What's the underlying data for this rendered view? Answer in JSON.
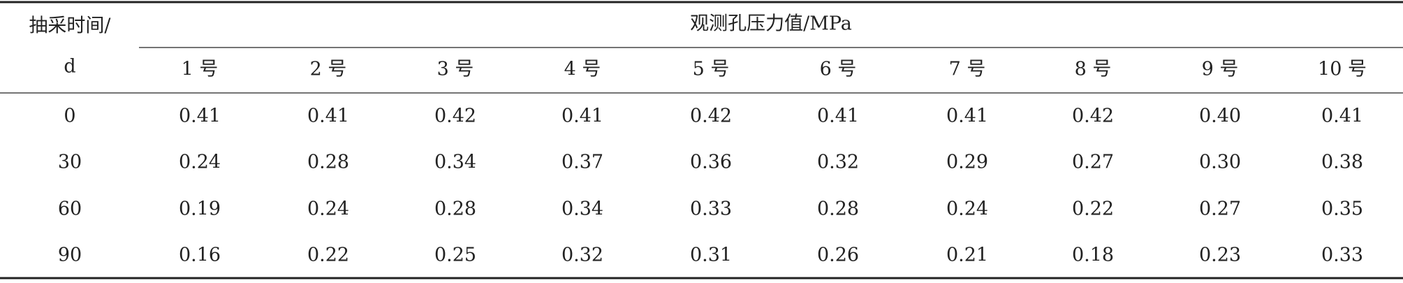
{
  "table": {
    "row_header": [
      "抽采时间/",
      "d"
    ],
    "group_header": "观测孔压力值/MPa",
    "columns": [
      "1 号",
      "2 号",
      "3 号",
      "4 号",
      "5 号",
      "6 号",
      "7 号",
      "8 号",
      "9 号",
      "10 号"
    ],
    "rows": [
      [
        "0",
        "0.41",
        "0.41",
        "0.42",
        "0.41",
        "0.42",
        "0.41",
        "0.41",
        "0.42",
        "0.40",
        "0.41"
      ],
      [
        "30",
        "0.24",
        "0.28",
        "0.34",
        "0.37",
        "0.36",
        "0.32",
        "0.29",
        "0.27",
        "0.30",
        "0.38"
      ],
      [
        "60",
        "0.19",
        "0.24",
        "0.28",
        "0.34",
        "0.33",
        "0.28",
        "0.24",
        "0.22",
        "0.27",
        "0.35"
      ],
      [
        "90",
        "0.16",
        "0.22",
        "0.25",
        "0.32",
        "0.31",
        "0.26",
        "0.21",
        "0.18",
        "0.23",
        "0.33"
      ]
    ]
  }
}
